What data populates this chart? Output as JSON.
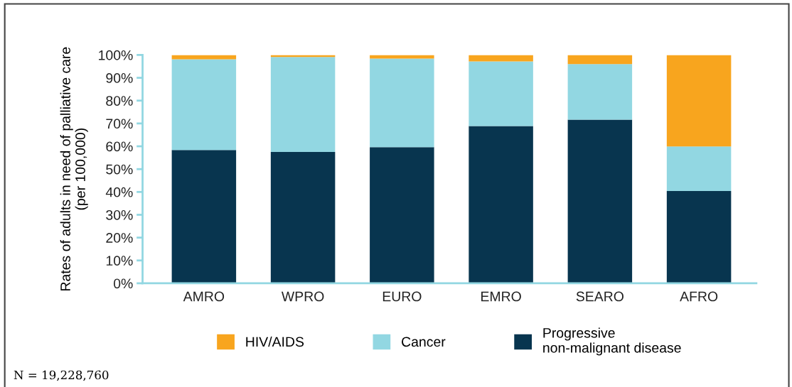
{
  "chart_data": {
    "type": "bar",
    "stacked": true,
    "ylabel": "Rates of adults in need of palliative care\n(per 100,000)",
    "categories": [
      "AMRO",
      "WPRO",
      "EURO",
      "EMRO",
      "SEARO",
      "AFRO"
    ],
    "series": [
      {
        "name": "Progressive\nnon-malignant disease",
        "color": "#08354f",
        "values": [
          58.4,
          57.5,
          59.6,
          68.9,
          71.7,
          40.4
        ]
      },
      {
        "name": "Cancer",
        "color": "#92d7e2",
        "values": [
          39.7,
          41.6,
          38.8,
          28.3,
          24.3,
          19.5
        ]
      },
      {
        "name": "HIV/AIDS",
        "color": "#f8a51e",
        "values": [
          1.9,
          0.9,
          1.6,
          2.8,
          4.0,
          40.1
        ]
      }
    ],
    "ylim": [
      0,
      100
    ],
    "yticks": [
      {
        "value": 0,
        "label": "0%"
      },
      {
        "value": 10,
        "label": "10%"
      },
      {
        "value": 20,
        "label": "20%"
      },
      {
        "value": 30,
        "label": "30%"
      },
      {
        "value": 40,
        "label": "40%"
      },
      {
        "value": 50,
        "label": "50%"
      },
      {
        "value": 60,
        "label": "60%"
      },
      {
        "value": 70,
        "label": "70%"
      },
      {
        "value": 80,
        "label": "80%"
      },
      {
        "value": 90,
        "label": "90%"
      },
      {
        "value": 100,
        "label": "100%"
      }
    ],
    "grid": false,
    "legend": "bottom",
    "annotations": [
      "N = 19,228,760"
    ]
  }
}
